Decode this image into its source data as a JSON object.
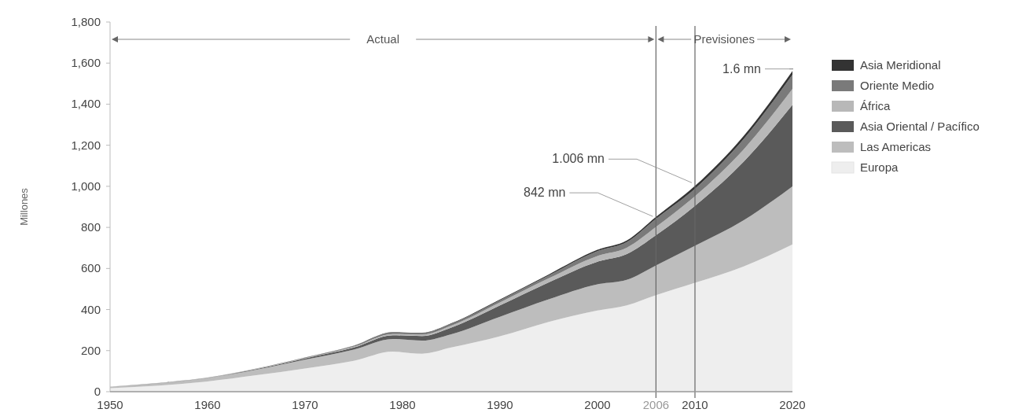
{
  "chart_data": {
    "type": "area",
    "stacked": true,
    "ylabel": "Millones",
    "x": [
      1950,
      1955,
      1960,
      1965,
      1970,
      1975,
      1979,
      1982,
      1985,
      1990,
      1995,
      2000,
      2003,
      2006,
      2010,
      2015,
      2020
    ],
    "series": [
      {
        "name": "Europa",
        "color": "#eeeeee",
        "values": [
          17,
          30,
          50,
          80,
          113,
          150,
          195,
          185,
          215,
          270,
          340,
          395,
          420,
          470,
          530,
          610,
          717
        ]
      },
      {
        "name": "Las Americas",
        "color": "#bdbdbd",
        "values": [
          7,
          11,
          16,
          27,
          43,
          55,
          62,
          64,
          65,
          95,
          110,
          128,
          125,
          145,
          180,
          225,
          283
        ]
      },
      {
        "name": "Asia Oriental / Pacífico",
        "color": "#5a5a5a",
        "values": [
          0,
          1,
          1,
          3,
          6,
          10,
          18,
          22,
          32,
          55,
          82,
          110,
          125,
          147,
          195,
          285,
          397
        ]
      },
      {
        "name": "África",
        "color": "#b8b8b8",
        "values": [
          1,
          1,
          1,
          2,
          2,
          4,
          6,
          7,
          10,
          15,
          20,
          28,
          31,
          40,
          47,
          60,
          77
        ]
      },
      {
        "name": "Oriente Medio",
        "color": "#7a7a7a",
        "values": [
          0,
          0,
          1,
          1,
          2,
          4,
          7,
          7,
          8,
          10,
          14,
          24,
          28,
          40,
          36,
          50,
          69
        ]
      },
      {
        "name": "Asia Meridional",
        "color": "#333333",
        "values": [
          0,
          0,
          0,
          0,
          1,
          1,
          2,
          2,
          3,
          4,
          5,
          6,
          7,
          9,
          14,
          16,
          19
        ]
      }
    ],
    "xlim": [
      1950,
      2020
    ],
    "xticks": [
      1950,
      1960,
      1970,
      1980,
      1990,
      2000,
      2006,
      2010,
      2020
    ],
    "ylim": [
      0,
      1800
    ],
    "yticks": [
      {
        "value": 0,
        "label": "0"
      },
      {
        "value": 200,
        "label": "200"
      },
      {
        "value": 400,
        "label": "400"
      },
      {
        "value": 600,
        "label": "600"
      },
      {
        "value": 800,
        "label": "800"
      },
      {
        "value": 1000,
        "label": "1,000"
      },
      {
        "value": 1200,
        "label": "1,200"
      },
      {
        "value": 1400,
        "label": "1,400"
      },
      {
        "value": 1600,
        "label": "1,600"
      },
      {
        "value": 1800,
        "label": "1,800"
      }
    ],
    "ref_lines": [
      {
        "axis": "x",
        "value": 2006,
        "color": "#666666"
      },
      {
        "axis": "x",
        "value": 2010,
        "color": "#666666"
      }
    ],
    "annotations": [
      {
        "text": "842 mn",
        "x": 2006,
        "y": 842
      },
      {
        "text": "1.006 mn",
        "x": 2010,
        "y": 1006
      },
      {
        "text": "1.6 mn",
        "x": 2020,
        "y": 1560
      },
      "Actual",
      "Previsiones"
    ],
    "grid": false,
    "legend": "right"
  }
}
